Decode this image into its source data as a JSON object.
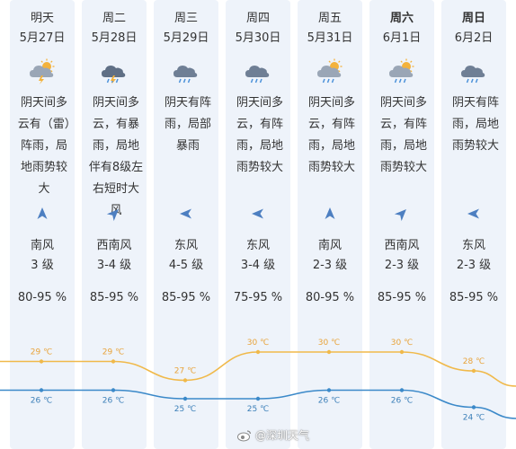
{
  "colors": {
    "high_line": "#f0b94a",
    "high_label": "#e8a33a",
    "low_line": "#3b89c9",
    "low_label": "#3b7fb8",
    "column_bg": "#eef3fa",
    "arrow": "#4d7fc1"
  },
  "days": [
    {
      "name": "明天",
      "date": "5月27日",
      "bold": false,
      "icon": "cloudy-sun-lightning-icon",
      "desc": "阴天间多云有（雷）阵雨，局地雨势较大",
      "wind_dir": "南风",
      "wind_level": "3 级",
      "wind_arrow_deg": 0,
      "humidity": "80-95 %",
      "high": "29 ℃",
      "low": "26 ℃"
    },
    {
      "name": "周二",
      "date": "5月28日",
      "bold": false,
      "icon": "thunderstorm-icon",
      "desc": "阴天间多云，有暴雨，局地伴有8级左右短时大风",
      "wind_dir": "西南风",
      "wind_level": "3-4 级",
      "wind_arrow_deg": 45,
      "humidity": "85-95 %",
      "high": "29 ℃",
      "low": "26 ℃"
    },
    {
      "name": "周三",
      "date": "5月29日",
      "bold": false,
      "icon": "rain-cloud-icon",
      "desc": "阴天有阵雨，局部暴雨",
      "wind_dir": "东风",
      "wind_level": "4-5 级",
      "wind_arrow_deg": -90,
      "humidity": "85-95 %",
      "high": "27 ℃",
      "low": "25 ℃"
    },
    {
      "name": "周四",
      "date": "5月30日",
      "bold": false,
      "icon": "rain-cloud-icon",
      "desc": "阴天间多云，有阵雨，局地雨势较大",
      "wind_dir": "东风",
      "wind_level": "3-4 级",
      "wind_arrow_deg": -90,
      "humidity": "75-95 %",
      "high": "30 ℃",
      "low": "25 ℃"
    },
    {
      "name": "周五",
      "date": "5月31日",
      "bold": false,
      "icon": "cloudy-sun-rain-icon",
      "desc": "阴天间多云，有阵雨，局地雨势较大",
      "wind_dir": "南风",
      "wind_level": "2-3 级",
      "wind_arrow_deg": 0,
      "humidity": "80-95 %",
      "high": "30 ℃",
      "low": "26 ℃"
    },
    {
      "name": "周六",
      "date": "6月1日",
      "bold": true,
      "icon": "cloudy-sun-rain-icon",
      "desc": "阴天间多云，有阵雨，局地雨势较大",
      "wind_dir": "西南风",
      "wind_level": "2-3 级",
      "wind_arrow_deg": 45,
      "humidity": "85-95 %",
      "high": "30 ℃",
      "low": "26 ℃"
    },
    {
      "name": "周日",
      "date": "6月2日",
      "bold": true,
      "icon": "rain-cloud-icon",
      "desc": "阴天有阵雨，局地雨势较大",
      "wind_dir": "东风",
      "wind_level": "2-3 级",
      "wind_arrow_deg": -90,
      "humidity": "85-95 %",
      "high": "28 ℃",
      "low": "24 ℃"
    }
  ],
  "temps": {
    "high_values": [
      29,
      29,
      27,
      30,
      30,
      30,
      28
    ],
    "low_values": [
      26,
      26,
      25,
      25,
      26,
      26,
      24
    ]
  },
  "watermark": "@深圳天气"
}
